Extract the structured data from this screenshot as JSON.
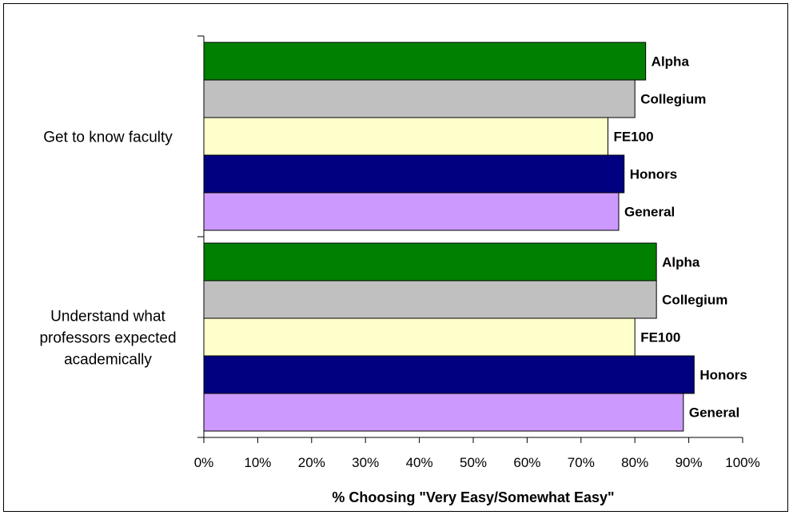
{
  "chart_data": {
    "type": "bar",
    "orientation": "horizontal",
    "xlabel": "% Choosing \"Very Easy/Somewhat Easy\"",
    "xlim": [
      0,
      100
    ],
    "x_ticks": [
      "0%",
      "10%",
      "20%",
      "30%",
      "40%",
      "50%",
      "60%",
      "70%",
      "80%",
      "90%",
      "100%"
    ],
    "categories": [
      [
        "Get to know faculty"
      ],
      [
        "Understand what",
        "professors expected",
        "academically"
      ]
    ],
    "series": [
      {
        "name": "Alpha",
        "color": "#008000",
        "values": [
          82,
          84
        ]
      },
      {
        "name": "Collegium",
        "color": "#c0c0c0",
        "values": [
          80,
          84
        ]
      },
      {
        "name": "FE100",
        "color": "#ffffcc",
        "values": [
          75,
          80
        ]
      },
      {
        "name": "Honors",
        "color": "#000080",
        "values": [
          78,
          91
        ]
      },
      {
        "name": "General",
        "color": "#cc99ff",
        "values": [
          77,
          89
        ]
      }
    ],
    "grid": false,
    "legend": "none; series names printed at bar ends"
  }
}
